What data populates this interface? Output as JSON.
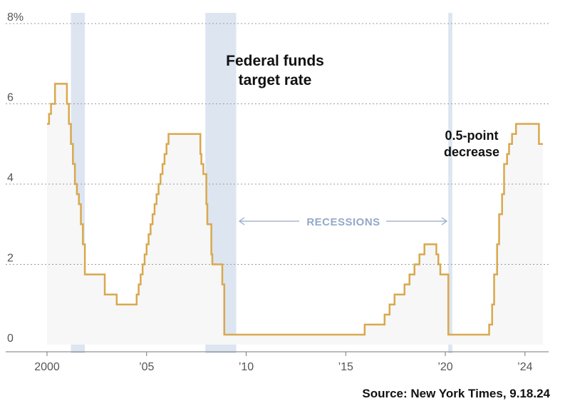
{
  "chart_data": {
    "type": "line",
    "title": "Federal funds target rate",
    "annotation": "0.5-point decrease",
    "recessions_label": "RECESSIONS",
    "source": "Source: New York Times, 9.18.24",
    "yticks": [
      0,
      2,
      4,
      6,
      8
    ],
    "ytick_labels": [
      "0",
      "2",
      "4",
      "6",
      "8%"
    ],
    "xticks": [
      2000,
      2005,
      2010,
      2015,
      2020,
      2024
    ],
    "xtick_labels": [
      "2000",
      "’05",
      "’10",
      "’15",
      "’20",
      "’24"
    ],
    "xlim": [
      2000,
      2024.9
    ],
    "ylim": [
      0,
      8
    ],
    "grid": true,
    "colors": {
      "line": "#d9a84e",
      "fill": "#f6f7f6",
      "recession": "#dde5f1",
      "grid": "#9a9a9a",
      "recessions_label": "#93a9c9"
    },
    "recessions": [
      {
        "start": 2001.2,
        "end": 2001.9
      },
      {
        "start": 2007.95,
        "end": 2009.5
      },
      {
        "start": 2020.15,
        "end": 2020.35
      }
    ],
    "series": [
      {
        "x": [
          2000.0,
          2000.1,
          2000.2,
          2000.4,
          2001.0,
          2001.1,
          2001.2,
          2001.3,
          2001.4,
          2001.5,
          2001.6,
          2001.7,
          2001.8,
          2001.9,
          2002.9,
          2003.5,
          2004.5,
          2004.6,
          2004.7,
          2004.8,
          2004.9,
          2005.0,
          2005.1,
          2005.2,
          2005.3,
          2005.4,
          2005.5,
          2005.6,
          2005.7,
          2005.8,
          2005.9,
          2006.0,
          2006.1,
          2006.2,
          2006.3,
          2006.4,
          2006.5,
          2007.7,
          2007.75,
          2007.85,
          2008.0,
          2008.05,
          2008.25,
          2008.3,
          2008.8,
          2008.9,
          2015.95,
          2016.95,
          2017.2,
          2017.45,
          2017.95,
          2018.2,
          2018.45,
          2018.7,
          2018.95,
          2019.55,
          2019.65,
          2019.75,
          2020.15,
          2020.2,
          2022.2,
          2022.35,
          2022.45,
          2022.6,
          2022.7,
          2022.85,
          2022.95,
          2023.1,
          2023.2,
          2023.35,
          2023.55,
          2024.7
        ],
        "y": [
          5.5,
          5.75,
          6.0,
          6.5,
          6.0,
          5.5,
          5.0,
          4.5,
          4.0,
          3.75,
          3.5,
          3.0,
          2.5,
          1.75,
          1.25,
          1.0,
          1.25,
          1.5,
          1.75,
          2.0,
          2.25,
          2.5,
          2.75,
          3.0,
          3.25,
          3.5,
          3.75,
          4.0,
          4.25,
          4.5,
          4.75,
          5.0,
          5.25,
          5.25,
          5.25,
          5.25,
          5.25,
          4.75,
          4.5,
          4.25,
          3.5,
          3.0,
          2.25,
          2.0,
          1.5,
          0.25,
          0.5,
          0.75,
          1.0,
          1.25,
          1.5,
          1.75,
          2.0,
          2.25,
          2.5,
          2.25,
          2.0,
          1.75,
          0.25,
          0.25,
          0.5,
          1.0,
          1.75,
          2.5,
          3.25,
          3.75,
          4.5,
          4.75,
          5.0,
          5.25,
          5.5,
          5.0
        ]
      }
    ]
  }
}
